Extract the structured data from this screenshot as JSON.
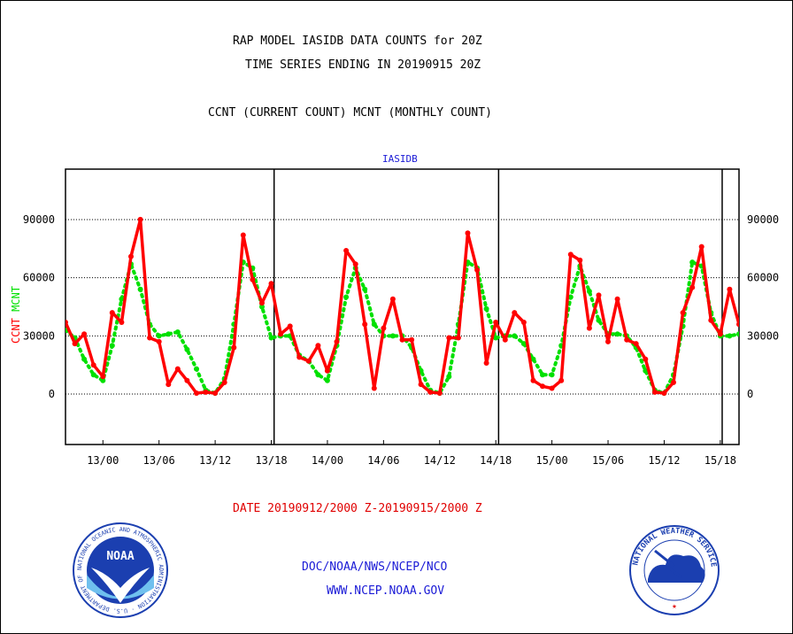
{
  "header": {
    "title_line1": "RAP MODEL IASIDB DATA COUNTS for 20Z",
    "title_line2": "TIME SERIES ENDING IN 20190915 20Z",
    "subtitle": "CCNT (CURRENT COUNT) MCNT (MONTHLY COUNT)"
  },
  "footer": {
    "date_range": "DATE 20190912/2000 Z-20190915/2000 Z",
    "org": "DOC/NOAA/NWS/NCEP/NCO",
    "url": "WWW.NCEP.NOAA.GOV",
    "noaa_logo_text": "NOAA",
    "noaa_ring_text": "NATIONAL OCEANIC AND ATMOSPHERIC ADMINISTRATION · U.S. DEPARTMENT OF COMMERCE",
    "nws_ring_text": "NATIONAL WEATHER SERVICE"
  },
  "chart_data": {
    "type": "line",
    "title": "IASIDB",
    "ylabel_ccnt": "CCNT",
    "ylabel_mcnt": "MCNT",
    "ylim": [
      -26000,
      116000
    ],
    "yticks": [
      0,
      30000,
      60000,
      90000
    ],
    "ytick_labels": [
      "0",
      "30000",
      "60000",
      "90000"
    ],
    "grid": true,
    "x_range_hours": [
      -4,
      68
    ],
    "xticks": [
      {
        "h": 0,
        "label": "13/00"
      },
      {
        "h": 6,
        "label": "13/06"
      },
      {
        "h": 12,
        "label": "13/12"
      },
      {
        "h": 18,
        "label": "13/18"
      },
      {
        "h": 24,
        "label": "14/00"
      },
      {
        "h": 30,
        "label": "14/06"
      },
      {
        "h": 36,
        "label": "14/12"
      },
      {
        "h": 42,
        "label": "14/18"
      },
      {
        "h": 48,
        "label": "15/00"
      },
      {
        "h": 54,
        "label": "15/06"
      },
      {
        "h": 60,
        "label": "15/12"
      },
      {
        "h": 66,
        "label": "15/18"
      }
    ],
    "day_separators_h": [
      18.3,
      42.3,
      66.2
    ],
    "colors": {
      "ccnt": "#ff0000",
      "mcnt": "#00e000",
      "grid": "#000000",
      "title": "#1b1bd6"
    },
    "series": [
      {
        "name": "CCNT",
        "x": [
          -4,
          -3,
          -2,
          -1,
          0,
          1,
          2,
          3,
          4,
          5,
          6,
          7,
          8,
          9,
          10,
          11,
          12,
          13,
          14,
          15,
          16,
          17,
          18,
          19,
          20,
          21,
          22,
          23,
          24,
          25,
          26,
          27,
          28,
          29,
          30,
          31,
          32,
          33,
          34,
          35,
          36,
          37,
          38,
          39,
          40,
          41,
          42,
          43,
          44,
          45,
          46,
          47,
          48,
          49,
          50,
          51,
          52,
          53,
          54,
          55,
          56,
          57,
          58,
          59,
          60,
          61,
          62,
          63,
          64,
          65,
          66,
          67,
          68
        ],
        "values": [
          37000,
          26000,
          31000,
          15000,
          9000,
          42000,
          37000,
          71000,
          90000,
          29000,
          27000,
          5000,
          13000,
          7000,
          500,
          1000,
          500,
          6000,
          24000,
          82000,
          59000,
          47000,
          57000,
          31000,
          35000,
          19000,
          17000,
          25000,
          12000,
          27000,
          74000,
          67000,
          36000,
          3000,
          34000,
          49000,
          28000,
          28000,
          5000,
          1000,
          500,
          29000,
          29000,
          83000,
          64000,
          16000,
          37000,
          28000,
          42000,
          37000,
          7000,
          4000,
          3000,
          7000,
          72000,
          69000,
          34000,
          51000,
          27000,
          49000,
          28000,
          26000,
          18000,
          1000,
          500,
          6000,
          42000,
          55000,
          76000,
          38000,
          31000,
          54000,
          36000
        ]
      },
      {
        "name": "MCNT",
        "x": [
          -4,
          -3,
          -2,
          -1,
          0,
          1,
          2,
          3,
          4,
          5,
          6,
          7,
          8,
          9,
          10,
          11,
          12,
          13,
          14,
          15,
          16,
          17,
          18,
          19,
          20,
          21,
          22,
          23,
          24,
          25,
          26,
          27,
          28,
          29,
          30,
          31,
          32,
          33,
          34,
          35,
          36,
          37,
          38,
          39,
          40,
          41,
          42,
          43,
          44,
          45,
          46,
          47,
          48,
          49,
          50,
          51,
          52,
          53,
          54,
          55,
          56,
          57,
          58,
          59,
          60,
          61,
          62,
          63,
          64,
          65,
          66,
          67,
          68
        ],
        "values": [
          33000,
          29000,
          18000,
          10000,
          7000,
          25000,
          49000,
          67000,
          54000,
          36000,
          30000,
          31000,
          32000,
          23000,
          13000,
          2000,
          500,
          8000,
          36000,
          68000,
          65000,
          45000,
          29000,
          30000,
          30000,
          20000,
          17000,
          10000,
          7000,
          25000,
          50000,
          65000,
          54000,
          36000,
          30000,
          30000,
          30000,
          24000,
          12000,
          2000,
          500,
          9000,
          36000,
          68000,
          65000,
          44000,
          29000,
          30000,
          30000,
          26000,
          18000,
          10000,
          10000,
          25000,
          50000,
          66000,
          53000,
          38000,
          31000,
          31000,
          30000,
          24000,
          12000,
          2000,
          500,
          10000,
          35000,
          68000,
          66000,
          42000,
          30000,
          30000,
          31000
        ]
      }
    ]
  }
}
